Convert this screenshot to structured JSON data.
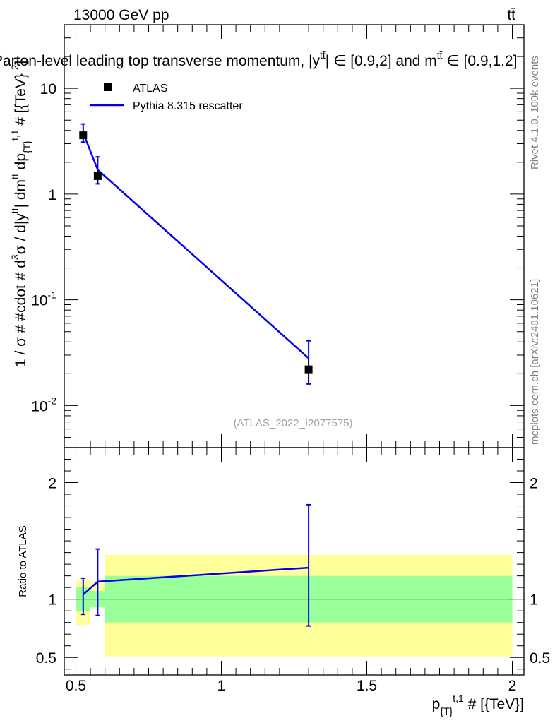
{
  "header": {
    "energy_label": "13000 GeV pp",
    "process_label": "tt̄"
  },
  "side_labels": {
    "rivet": "Rivet 4.1.0,  100k events",
    "source": "mcplots.cern.ch [arXiv:2401.10621]"
  },
  "watermark": "(ATLAS_2022_I2077575)",
  "colors": {
    "data": "#000000",
    "mc": "#0000ee",
    "band_inner": "#99ff99",
    "band_outer": "#ffff99"
  },
  "chart_data": [
    {
      "type": "scatter",
      "title": "Parton-level leading top transverse momentum, |y",
      "title_sup": "tt̄",
      "title_mid": "| ∈ [0.9,2] and m",
      "title_sup2": "tt̄",
      "title_end": " ∈ [0.9,1.2]",
      "ylabel": "1 / σ # #cdot # d",
      "ylabel_parts": [
        "1 / σ # #cdot # d",
        "3",
        "σ / d|y",
        "tt̄",
        "| dm",
        "tt̄",
        " dp",
        "{T}",
        "t,1",
        " # [{TeV}",
        "-2",
        "]"
      ],
      "yscale": "log",
      "ylim": [
        0.004,
        40
      ],
      "xlim": [
        0.46,
        2.04
      ],
      "y_ticks": [
        {
          "value": 0.01,
          "base": "10",
          "exp": "-2"
        },
        {
          "value": 0.1,
          "base": "10",
          "exp": "-1"
        },
        {
          "value": 1,
          "base": "1",
          "exp": ""
        },
        {
          "value": 10,
          "base": "10",
          "exp": ""
        }
      ],
      "legend": [
        {
          "label": "ATLAS",
          "style": "marker"
        },
        {
          "label": "Pythia 8.315 rescatter",
          "style": "line"
        }
      ],
      "series": [
        {
          "name": "ATLAS",
          "x": [
            0.525,
            0.575,
            1.3
          ],
          "y": [
            3.6,
            1.48,
            0.022
          ],
          "yerr_low": [
            0.5,
            0.22,
            0.006
          ],
          "yerr_high": [
            0.5,
            0.22,
            0.006
          ]
        },
        {
          "name": "Pythia 8.315 rescatter",
          "x": [
            0.525,
            0.575,
            1.3
          ],
          "y": [
            3.8,
            1.7,
            0.028
          ],
          "yerr_low": [
            0.7,
            0.45,
            0.012
          ],
          "yerr_high": [
            0.8,
            0.55,
            0.013
          ]
        }
      ]
    },
    {
      "type": "line",
      "ylabel": "Ratio to ATLAS",
      "xlabel": "p",
      "xlabel_parts": [
        "p",
        "{T}",
        "t,1",
        " # [{TeV}]"
      ],
      "xlim": [
        0.46,
        2.04
      ],
      "ylim": [
        0.35,
        2.3
      ],
      "x_ticks": [
        {
          "value": 0.5,
          "label": "0.5"
        },
        {
          "value": 1,
          "label": "1"
        },
        {
          "value": 1.5,
          "label": "1.5"
        },
        {
          "value": 2,
          "label": "2"
        }
      ],
      "y_ticks": [
        {
          "value": 0.5,
          "label": "0.5"
        },
        {
          "value": 1,
          "label": "1"
        },
        {
          "value": 2,
          "label": "2"
        }
      ],
      "bands": [
        {
          "x0": 0.5,
          "x1": 0.55,
          "outer": [
            0.78,
            1.17
          ],
          "inner": [
            0.9,
            1.1
          ]
        },
        {
          "x0": 0.55,
          "x1": 0.6,
          "outer": [
            0.93,
            1.14
          ],
          "inner": [
            0.93,
            1.07
          ]
        },
        {
          "x0": 0.6,
          "x1": 2.0,
          "outer": [
            0.51,
            1.38
          ],
          "inner": [
            0.8,
            1.2
          ]
        }
      ],
      "series": [
        {
          "name": "Pythia 8.315 rescatter",
          "x": [
            0.525,
            0.575,
            1.3
          ],
          "y": [
            1.04,
            1.15,
            1.27
          ],
          "yerr_low": [
            0.17,
            0.29,
            0.5
          ],
          "yerr_high": [
            0.14,
            0.28,
            0.54
          ]
        }
      ]
    }
  ]
}
